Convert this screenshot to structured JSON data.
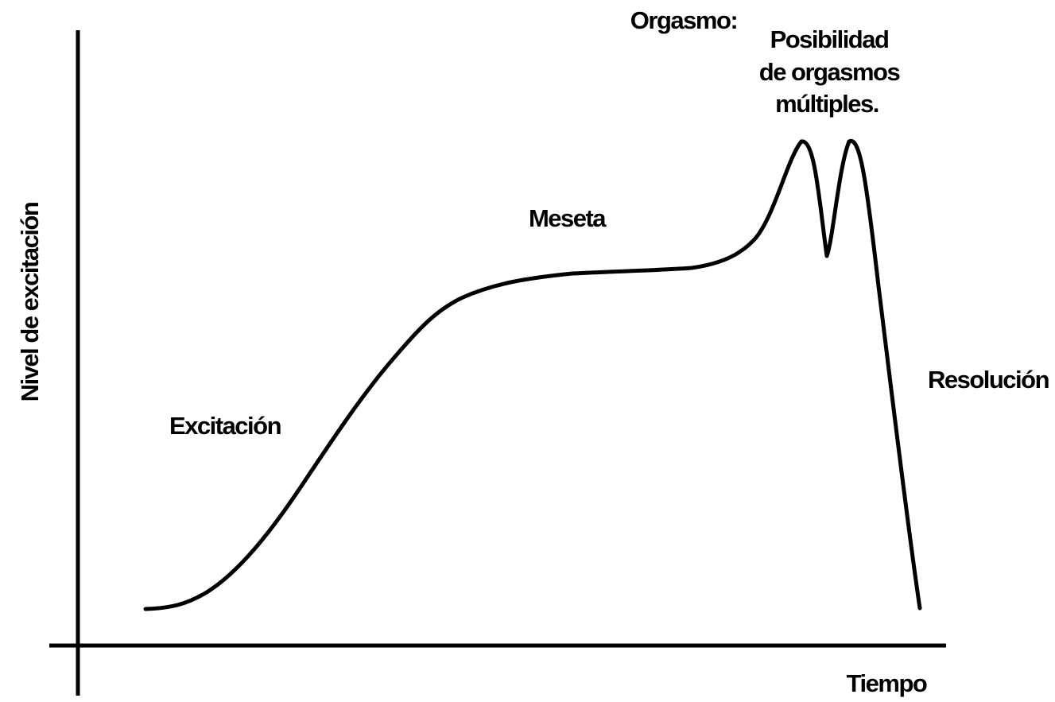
{
  "labels": {
    "orgasm": "Orgasmo:",
    "multiple": [
      "Posibilidad",
      "de orgasmos",
      "múltiples."
    ],
    "plateau": "Meseta",
    "excitement": "Excitación",
    "resolution": "Resolución"
  },
  "axes": {
    "y_label": "Nivel de excitación",
    "x_label": "Tiempo"
  }
}
